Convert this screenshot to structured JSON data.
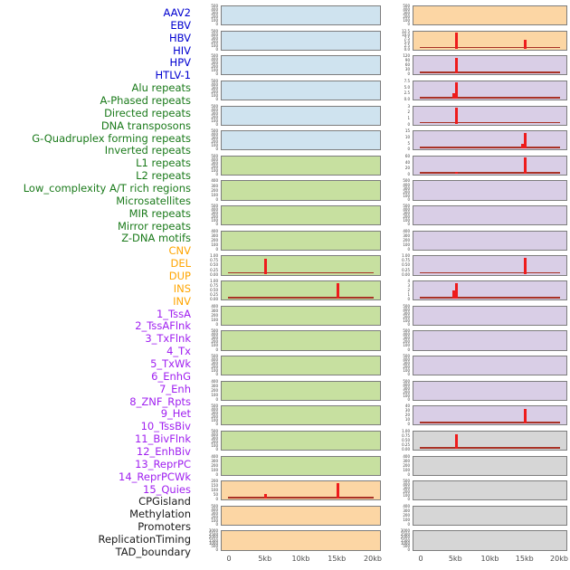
{
  "figure": {
    "background": "#ffffff",
    "spike_color": "#ee1c1c",
    "baseline_color": "#a93226",
    "panel_border_color": "#7d7d7d",
    "tick_text_color": "#3a3a3a",
    "groups": {
      "virus": {
        "label_color": "#0000d0",
        "panel_color": "#cfe3ef"
      },
      "repeat": {
        "label_color": "#1a7a1a",
        "panel_color": "#c7e0a0"
      },
      "sv": {
        "label_color": "#ffa500",
        "panel_color": "#fcd6a4"
      },
      "chromatin": {
        "label_color": "#a020f0",
        "panel_color": "#d9cee6"
      },
      "other": {
        "label_color": "#1a1a1a",
        "panel_color": "#d6d6d6"
      }
    }
  },
  "chart_data": {
    "type": "area",
    "title": "",
    "xlabel": "",
    "ylabel": "",
    "x_axis": {
      "ticks": [
        "0",
        "5kb",
        "10kb",
        "15kb",
        "20kb"
      ],
      "range_kb": [
        0,
        20
      ]
    },
    "layout": {
      "columns": 2,
      "rows_per_column": 22,
      "grid": false,
      "legend": "none"
    },
    "tracks": [
      {
        "name": "AAV2",
        "group": "virus",
        "col": "left",
        "row": 0,
        "yticks": [
          "500",
          "400",
          "300",
          "200",
          "100",
          "0"
        ],
        "spikes": [],
        "baseline": false
      },
      {
        "name": "EBV",
        "group": "virus",
        "col": "left",
        "row": 1,
        "yticks": [
          "500",
          "400",
          "300",
          "200",
          "100",
          "0"
        ],
        "spikes": [],
        "baseline": false
      },
      {
        "name": "HBV",
        "group": "virus",
        "col": "left",
        "row": 2,
        "yticks": [
          "500",
          "400",
          "300",
          "200",
          "100",
          "0"
        ],
        "spikes": [],
        "baseline": false
      },
      {
        "name": "HIV",
        "group": "virus",
        "col": "left",
        "row": 3,
        "yticks": [
          "500",
          "400",
          "300",
          "200",
          "100",
          "0"
        ],
        "spikes": [],
        "baseline": false
      },
      {
        "name": "HPV",
        "group": "virus",
        "col": "left",
        "row": 4,
        "yticks": [
          "500",
          "400",
          "300",
          "200",
          "100",
          "0"
        ],
        "spikes": [],
        "baseline": false
      },
      {
        "name": "HTLV-1",
        "group": "virus",
        "col": "left",
        "row": 5,
        "yticks": [
          "500",
          "400",
          "300",
          "200",
          "100",
          "0"
        ],
        "spikes": [],
        "baseline": false
      },
      {
        "name": "Alu repeats",
        "group": "repeat",
        "col": "left",
        "row": 6,
        "yticks": [
          "500",
          "400",
          "300",
          "200",
          "100",
          "0"
        ],
        "spikes": [],
        "baseline": false
      },
      {
        "name": "A-Phased repeats",
        "group": "repeat",
        "col": "left",
        "row": 7,
        "yticks": [
          "400",
          "300",
          "200",
          "100",
          "0"
        ],
        "spikes": [],
        "baseline": false
      },
      {
        "name": "Directed repeats",
        "group": "repeat",
        "col": "left",
        "row": 8,
        "yticks": [
          "500",
          "400",
          "300",
          "200",
          "100",
          "0"
        ],
        "spikes": [],
        "baseline": false
      },
      {
        "name": "DNA transposons",
        "group": "repeat",
        "col": "left",
        "row": 9,
        "yticks": [
          "400",
          "300",
          "200",
          "100",
          "0"
        ],
        "spikes": [],
        "baseline": false
      },
      {
        "name": "G-Quadruplex forming repeats",
        "group": "repeat",
        "col": "left",
        "row": 10,
        "yticks": [
          "1.00",
          "0.75",
          "0.50",
          "0.25",
          "0.00"
        ],
        "spikes": [
          {
            "kb": 5,
            "h": 0.92
          }
        ],
        "baseline": true
      },
      {
        "name": "Inverted repeats",
        "group": "repeat",
        "col": "left",
        "row": 11,
        "yticks": [
          "1.00",
          "0.75",
          "0.50",
          "0.25",
          "0.00"
        ],
        "spikes": [
          {
            "kb": 15,
            "h": 0.92
          }
        ],
        "baseline": true
      },
      {
        "name": "L1 repeats",
        "group": "repeat",
        "col": "left",
        "row": 12,
        "yticks": [
          "400",
          "300",
          "200",
          "100",
          "0"
        ],
        "spikes": [],
        "baseline": false
      },
      {
        "name": "L2 repeats",
        "group": "repeat",
        "col": "left",
        "row": 13,
        "yticks": [
          "500",
          "400",
          "300",
          "200",
          "100",
          "0"
        ],
        "spikes": [],
        "baseline": false
      },
      {
        "name": "Low_complexity A/T rich regions",
        "group": "repeat",
        "col": "left",
        "row": 14,
        "yticks": [
          "500",
          "400",
          "300",
          "200",
          "100",
          "0"
        ],
        "spikes": [],
        "baseline": false
      },
      {
        "name": "Microsatellites",
        "group": "repeat",
        "col": "left",
        "row": 15,
        "yticks": [
          "400",
          "300",
          "200",
          "100",
          "0"
        ],
        "spikes": [],
        "baseline": false
      },
      {
        "name": "MIR repeats",
        "group": "repeat",
        "col": "left",
        "row": 16,
        "yticks": [
          "500",
          "400",
          "300",
          "200",
          "100",
          "0"
        ],
        "spikes": [],
        "baseline": false
      },
      {
        "name": "Mirror repeats",
        "group": "repeat",
        "col": "left",
        "row": 17,
        "yticks": [
          "500",
          "400",
          "300",
          "200",
          "100",
          "0"
        ],
        "spikes": [],
        "baseline": false
      },
      {
        "name": "Z-DNA motifs",
        "group": "repeat",
        "col": "left",
        "row": 18,
        "yticks": [
          "400",
          "300",
          "200",
          "100",
          "0"
        ],
        "spikes": [],
        "baseline": false
      },
      {
        "name": "CNV",
        "group": "sv",
        "col": "left",
        "row": 19,
        "yticks": [
          "200",
          "150",
          "100",
          "50",
          "0"
        ],
        "spikes": [
          {
            "kb": 5,
            "h": 0.28
          },
          {
            "kb": 15,
            "h": 0.93
          }
        ],
        "baseline": true
      },
      {
        "name": "DEL",
        "group": "sv",
        "col": "left",
        "row": 20,
        "yticks": [
          "500",
          "400",
          "300",
          "200",
          "100",
          "0"
        ],
        "spikes": [],
        "baseline": false
      },
      {
        "name": "DUP",
        "group": "sv",
        "col": "left",
        "row": 21,
        "yticks": [
          "3000",
          "2500",
          "2000",
          "1500",
          "1000",
          "500",
          "0"
        ],
        "spikes": [],
        "baseline": false
      },
      {
        "name": "INS",
        "group": "sv",
        "col": "right",
        "row": 0,
        "yticks": [
          "500",
          "400",
          "300",
          "200",
          "100",
          "0"
        ],
        "spikes": [],
        "baseline": false
      },
      {
        "name": "INV",
        "group": "sv",
        "col": "right",
        "row": 1,
        "yticks": [
          "12.5",
          "10.0",
          "7.5",
          "5.0",
          "2.5",
          "0.0"
        ],
        "spikes": [
          {
            "kb": 5,
            "h": 0.97
          },
          {
            "kb": 15,
            "h": 0.55
          }
        ],
        "baseline": true
      },
      {
        "name": "1_TssA",
        "group": "chromatin",
        "col": "right",
        "row": 2,
        "yticks": [
          "120",
          "90",
          "60",
          "30",
          "0"
        ],
        "spikes": [
          {
            "kb": 5,
            "h": 0.97
          }
        ],
        "baseline": true
      },
      {
        "name": "2_TssAFlnk",
        "group": "chromatin",
        "col": "right",
        "row": 3,
        "yticks": [
          "7.5",
          "5.0",
          "2.5",
          "0.0"
        ],
        "spikes": [
          {
            "kb": 4.6,
            "h": 0.35
          },
          {
            "kb": 5,
            "h": 0.97
          }
        ],
        "baseline": true
      },
      {
        "name": "3_TxFlnk",
        "group": "chromatin",
        "col": "right",
        "row": 4,
        "yticks": [
          "3",
          "2",
          "1",
          "0"
        ],
        "spikes": [
          {
            "kb": 5,
            "h": 0.97
          }
        ],
        "baseline": true
      },
      {
        "name": "4_Tx",
        "group": "chromatin",
        "col": "right",
        "row": 5,
        "yticks": [
          "15",
          "10",
          "5",
          "0"
        ],
        "spikes": [
          {
            "kb": 14.6,
            "h": 0.28
          },
          {
            "kb": 15,
            "h": 0.97
          }
        ],
        "baseline": true
      },
      {
        "name": "5_TxWk",
        "group": "chromatin",
        "col": "right",
        "row": 6,
        "yticks": [
          "60",
          "40",
          "20",
          "0"
        ],
        "spikes": [
          {
            "kb": 5,
            "h": 0.12
          },
          {
            "kb": 15,
            "h": 0.97
          }
        ],
        "baseline": true
      },
      {
        "name": "6_EnhG",
        "group": "chromatin",
        "col": "right",
        "row": 7,
        "yticks": [
          "500",
          "400",
          "300",
          "200",
          "100",
          "0"
        ],
        "spikes": [],
        "baseline": false
      },
      {
        "name": "7_Enh",
        "group": "chromatin",
        "col": "right",
        "row": 8,
        "yticks": [
          "500",
          "400",
          "300",
          "200",
          "100",
          "0"
        ],
        "spikes": [],
        "baseline": false
      },
      {
        "name": "8_ZNF_Rpts",
        "group": "chromatin",
        "col": "right",
        "row": 9,
        "yticks": [
          "400",
          "300",
          "200",
          "100",
          "0"
        ],
        "spikes": [],
        "baseline": false
      },
      {
        "name": "9_Het",
        "group": "chromatin",
        "col": "right",
        "row": 10,
        "yticks": [
          "1.00",
          "0.75",
          "0.50",
          "0.25",
          "0.00"
        ],
        "spikes": [
          {
            "kb": 15,
            "h": 0.97
          }
        ],
        "baseline": true
      },
      {
        "name": "10_TssBiv",
        "group": "chromatin",
        "col": "right",
        "row": 11,
        "yticks": [
          "4",
          "3",
          "2",
          "1",
          "0"
        ],
        "spikes": [
          {
            "kb": 4.6,
            "h": 0.5
          },
          {
            "kb": 5,
            "h": 0.97
          }
        ],
        "baseline": true
      },
      {
        "name": "11_BivFlnk",
        "group": "chromatin",
        "col": "right",
        "row": 12,
        "yticks": [
          "500",
          "400",
          "300",
          "200",
          "100",
          "0"
        ],
        "spikes": [],
        "baseline": false
      },
      {
        "name": "12_EnhBiv",
        "group": "chromatin",
        "col": "right",
        "row": 13,
        "yticks": [
          "500",
          "400",
          "300",
          "200",
          "100",
          "0"
        ],
        "spikes": [],
        "baseline": false
      },
      {
        "name": "13_ReprPC",
        "group": "chromatin",
        "col": "right",
        "row": 14,
        "yticks": [
          "500",
          "400",
          "300",
          "200",
          "100",
          "0"
        ],
        "spikes": [],
        "baseline": false
      },
      {
        "name": "14_ReprPCWk",
        "group": "chromatin",
        "col": "right",
        "row": 15,
        "yticks": [
          "500",
          "400",
          "300",
          "200",
          "100",
          "0"
        ],
        "spikes": [],
        "baseline": false
      },
      {
        "name": "15_Quies",
        "group": "chromatin",
        "col": "right",
        "row": 16,
        "yticks": [
          "40",
          "30",
          "20",
          "10",
          "0"
        ],
        "spikes": [
          {
            "kb": 15,
            "h": 0.9
          }
        ],
        "baseline": true
      },
      {
        "name": "CPGisland",
        "group": "other",
        "col": "right",
        "row": 17,
        "yticks": [
          "1.00",
          "0.75",
          "0.50",
          "0.25",
          "0.00"
        ],
        "spikes": [
          {
            "kb": 5,
            "h": 0.9
          }
        ],
        "baseline": true
      },
      {
        "name": "Methylation",
        "group": "other",
        "col": "right",
        "row": 18,
        "yticks": [
          "400",
          "300",
          "200",
          "100",
          "0"
        ],
        "spikes": [],
        "baseline": false
      },
      {
        "name": "Promoters",
        "group": "other",
        "col": "right",
        "row": 19,
        "yticks": [
          "500",
          "400",
          "300",
          "200",
          "100",
          "0"
        ],
        "spikes": [],
        "baseline": false
      },
      {
        "name": "ReplicationTiming",
        "group": "other",
        "col": "right",
        "row": 20,
        "yticks": [
          "400",
          "300",
          "200",
          "100",
          "0"
        ],
        "spikes": [],
        "baseline": false
      },
      {
        "name": "TAD_boundary",
        "group": "other",
        "col": "right",
        "row": 21,
        "yticks": [
          "3000",
          "2500",
          "2000",
          "1500",
          "1000",
          "500",
          "0"
        ],
        "spikes": [],
        "baseline": false
      }
    ]
  }
}
